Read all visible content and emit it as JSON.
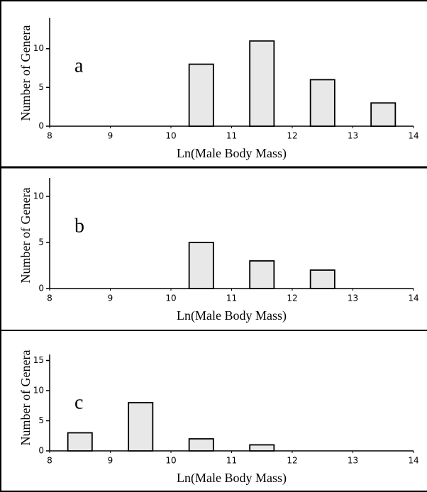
{
  "chart_data": [
    {
      "type": "bar",
      "panel_label": "a",
      "x": [
        10.5,
        11.5,
        12.5,
        13.5
      ],
      "values": [
        8,
        11,
        6,
        3
      ],
      "color": "#e8e8e8",
      "xlim": [
        8,
        14
      ],
      "xticks": [
        8,
        9,
        10,
        11,
        12,
        13,
        14
      ],
      "ylim": [
        0,
        14
      ],
      "yticks": [
        0,
        5,
        10
      ],
      "xlabel": "Ln(Male Body Mass)",
      "ylabel": "Number of Genera"
    },
    {
      "type": "bar",
      "panel_label": "b",
      "x": [
        10.5,
        11.5,
        12.5
      ],
      "values": [
        5,
        3,
        2
      ],
      "color": "#e8e8e8",
      "xlim": [
        8,
        14
      ],
      "xticks": [
        8,
        9,
        10,
        11,
        12,
        13,
        14
      ],
      "ylim": [
        0,
        12
      ],
      "yticks": [
        0,
        5,
        10
      ],
      "xlabel": "Ln(Male Body Mass)",
      "ylabel": "Number of Genera"
    },
    {
      "type": "bar",
      "panel_label": "c",
      "x": [
        8.5,
        9.5,
        10.5,
        11.5
      ],
      "values": [
        3,
        8,
        2,
        1
      ],
      "color": "#e8e8e8",
      "xlim": [
        8,
        14
      ],
      "xticks": [
        8,
        9,
        10,
        11,
        12,
        13,
        14
      ],
      "ylim": [
        0,
        16
      ],
      "yticks": [
        0,
        5,
        10,
        15
      ],
      "xlabel": "Ln(Male Body Mass)",
      "ylabel": "Number of Genera"
    }
  ]
}
